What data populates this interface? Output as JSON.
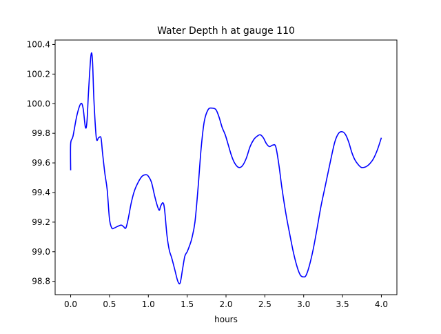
{
  "chart_data": {
    "type": "line",
    "title": "Water Depth h at gauge 110",
    "xlabel": "hours",
    "ylabel": "",
    "xlim": [
      -0.2,
      4.2
    ],
    "ylim": [
      98.71,
      100.43
    ],
    "xticks": [
      0.0,
      0.5,
      1.0,
      1.5,
      2.0,
      2.5,
      3.0,
      3.5,
      4.0
    ],
    "xtick_labels": [
      "0.0",
      "0.5",
      "1.0",
      "1.5",
      "2.0",
      "2.5",
      "3.0",
      "3.5",
      "4.0"
    ],
    "yticks": [
      98.8,
      99.0,
      99.2,
      99.4,
      99.6,
      99.8,
      100.0,
      100.2,
      100.4
    ],
    "ytick_labels": [
      "98.8",
      "99.0",
      "99.2",
      "99.4",
      "99.6",
      "99.8",
      "100.0",
      "100.2",
      "100.4"
    ],
    "grid": false,
    "legend": "none",
    "series": [
      {
        "color": "#0000ff",
        "x": [
          0.0,
          0.0,
          0.03,
          0.08,
          0.13,
          0.16,
          0.19,
          0.21,
          0.23,
          0.26,
          0.28,
          0.3,
          0.33,
          0.36,
          0.39,
          0.41,
          0.44,
          0.47,
          0.5,
          0.53,
          0.56,
          0.6,
          0.65,
          0.68,
          0.71,
          0.74,
          0.78,
          0.82,
          0.87,
          0.92,
          0.97,
          1.0,
          1.04,
          1.08,
          1.11,
          1.14,
          1.16,
          1.19,
          1.21,
          1.24,
          1.27,
          1.3,
          1.34,
          1.38,
          1.41,
          1.44,
          1.47,
          1.5,
          1.53,
          1.56,
          1.6,
          1.64,
          1.68,
          1.72,
          1.77,
          1.82,
          1.87,
          1.91,
          1.95,
          1.99,
          2.03,
          2.07,
          2.11,
          2.16,
          2.21,
          2.26,
          2.31,
          2.36,
          2.4,
          2.44,
          2.48,
          2.52,
          2.56,
          2.6,
          2.64,
          2.68,
          2.72,
          2.77,
          2.82,
          2.87,
          2.92,
          2.96,
          3.0,
          3.03,
          3.07,
          3.12,
          3.17,
          3.22,
          3.28,
          3.34,
          3.4,
          3.45,
          3.5,
          3.54,
          3.58,
          3.62,
          3.66,
          3.7,
          3.74,
          3.78,
          3.82,
          3.86,
          3.9,
          3.95,
          4.0
        ],
        "y": [
          99.55,
          99.73,
          99.78,
          99.92,
          100.0,
          99.97,
          99.84,
          99.88,
          100.08,
          100.32,
          100.3,
          100.02,
          99.77,
          99.77,
          99.77,
          99.67,
          99.53,
          99.42,
          99.22,
          99.16,
          99.16,
          99.17,
          99.18,
          99.17,
          99.16,
          99.22,
          99.33,
          99.41,
          99.47,
          99.51,
          99.52,
          99.51,
          99.47,
          99.38,
          99.32,
          99.28,
          99.31,
          99.33,
          99.28,
          99.11,
          99.01,
          98.96,
          98.88,
          98.8,
          98.79,
          98.88,
          98.97,
          99.0,
          99.04,
          99.09,
          99.2,
          99.43,
          99.7,
          99.88,
          99.96,
          99.97,
          99.96,
          99.91,
          99.84,
          99.79,
          99.72,
          99.65,
          99.6,
          99.57,
          99.58,
          99.63,
          99.71,
          99.76,
          99.78,
          99.79,
          99.77,
          99.73,
          99.71,
          99.72,
          99.71,
          99.59,
          99.43,
          99.26,
          99.12,
          98.99,
          98.89,
          98.84,
          98.83,
          98.84,
          98.9,
          99.01,
          99.15,
          99.3,
          99.45,
          99.6,
          99.74,
          99.8,
          99.81,
          99.79,
          99.74,
          99.67,
          99.62,
          99.59,
          99.57,
          99.57,
          99.58,
          99.6,
          99.63,
          99.69,
          99.77
        ]
      }
    ]
  }
}
